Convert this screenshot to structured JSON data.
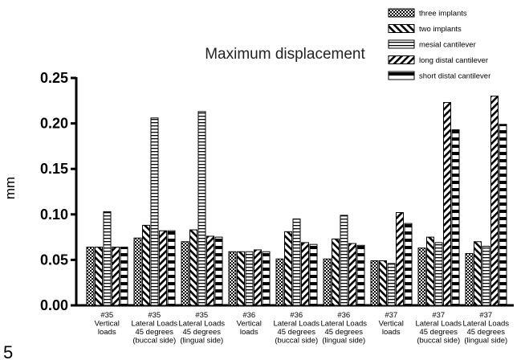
{
  "panel_label": "5",
  "chart_data": {
    "type": "bar",
    "title": "Maximum displacement",
    "ylabel": "mm",
    "xlabel": "",
    "ylim": [
      0,
      0.25
    ],
    "yticks": [
      "0.00",
      "0.05",
      "0.10",
      "0.15",
      "0.20",
      "0.25"
    ],
    "grid": false,
    "legend_position": "top-right",
    "categories": [
      [
        "#35",
        "Vertical",
        "loads"
      ],
      [
        "#35",
        "Lateral Loads",
        "45 degrees",
        "(buccal side)"
      ],
      [
        "#35",
        "Lateral Loads",
        "45 degrees",
        "(lingual side)"
      ],
      [
        "#36",
        "Vertical",
        "loads"
      ],
      [
        "#36",
        "Lateral Loads",
        "45 degrees",
        "(buccal side)"
      ],
      [
        "#36",
        "Lateral Loads",
        "45 degrees",
        "(lingual side)"
      ],
      [
        "#37",
        "Vertical",
        "loads"
      ],
      [
        "#37",
        "Lateral Loads",
        "45 degrees",
        "(buccal side)"
      ],
      [
        "#37",
        "Lateral Loads",
        "45 degrees",
        "(lingual side)"
      ]
    ],
    "series": [
      {
        "name": "three implants",
        "pattern": "checker",
        "values": [
          0.064,
          0.074,
          0.07,
          0.059,
          0.051,
          0.051,
          0.049,
          0.063,
          0.057
        ]
      },
      {
        "name": "two implants",
        "pattern": "diag-back",
        "values": [
          0.064,
          0.088,
          0.083,
          0.059,
          0.081,
          0.073,
          0.049,
          0.075,
          0.07
        ]
      },
      {
        "name": "mesial cantilever",
        "pattern": "hstripe",
        "values": [
          0.103,
          0.206,
          0.213,
          0.059,
          0.095,
          0.099,
          0.046,
          0.069,
          0.065
        ]
      },
      {
        "name": "long distal cantilever",
        "pattern": "diag-fwd",
        "values": [
          0.064,
          0.082,
          0.076,
          0.061,
          0.069,
          0.068,
          0.102,
          0.223,
          0.23
        ]
      },
      {
        "name": "short distal cantilever",
        "pattern": "hbar",
        "values": [
          0.064,
          0.082,
          0.075,
          0.059,
          0.067,
          0.066,
          0.09,
          0.193,
          0.199
        ]
      }
    ]
  }
}
